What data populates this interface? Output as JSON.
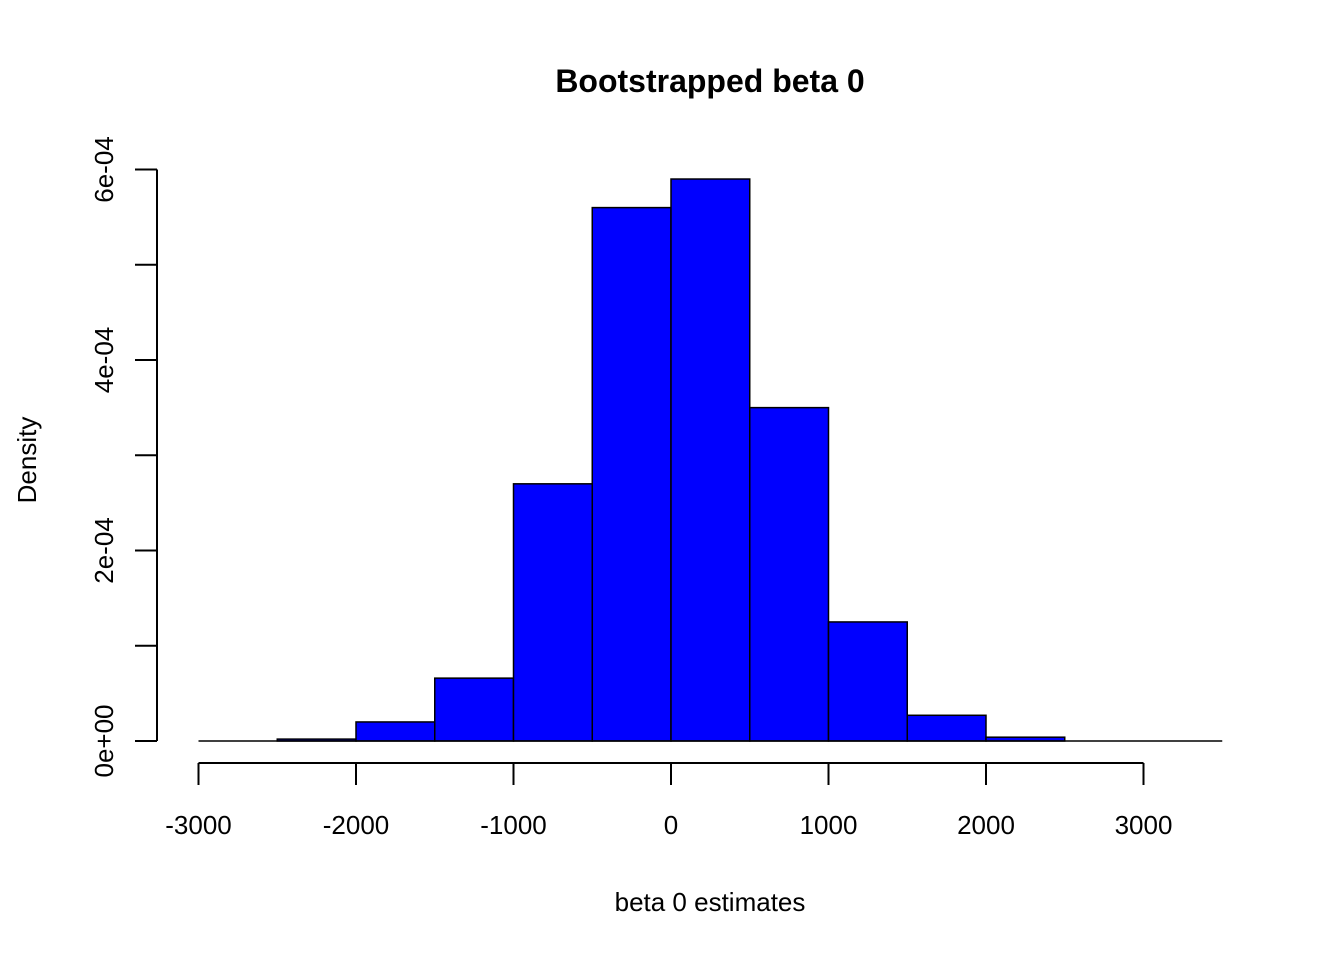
{
  "chart_data": {
    "type": "bar",
    "title": "Bootstrapped beta 0",
    "xlabel": "beta 0  estimates",
    "ylabel": "Density",
    "bar_color": "#0000ff",
    "bins": [
      {
        "x0": -3000,
        "x1": -2500,
        "density": 0.0
      },
      {
        "x0": -2500,
        "x1": -2000,
        "density": 2e-06
      },
      {
        "x0": -2000,
        "x1": -1500,
        "density": 2e-05
      },
      {
        "x0": -1500,
        "x1": -1000,
        "density": 6.6e-05
      },
      {
        "x0": -1000,
        "x1": -500,
        "density": 0.00027
      },
      {
        "x0": -500,
        "x1": 0,
        "density": 0.00056
      },
      {
        "x0": 0,
        "x1": 500,
        "density": 0.00059
      },
      {
        "x0": 500,
        "x1": 1000,
        "density": 0.00035
      },
      {
        "x0": 1000,
        "x1": 1500,
        "density": 0.000125
      },
      {
        "x0": 1500,
        "x1": 2000,
        "density": 2.7e-05
      },
      {
        "x0": 2000,
        "x1": 2500,
        "density": 4e-06
      },
      {
        "x0": 2500,
        "x1": 3000,
        "density": 0.0
      },
      {
        "x0": 3000,
        "x1": 3500,
        "density": 0.0
      }
    ],
    "xlim": [
      -3000,
      3500
    ],
    "ylim": [
      0,
      0.0006
    ],
    "x_ticks": [
      -3000,
      -2000,
      -1000,
      0,
      1000,
      2000,
      3000
    ],
    "x_tick_labels": [
      "-3000",
      "-2000",
      "-1000",
      "0",
      "1000",
      "2000",
      "3000"
    ],
    "y_ticks": [
      0,
      0.0001,
      0.0002,
      0.0003,
      0.0004,
      0.0005,
      0.0006
    ],
    "y_tick_labels": [
      "0e+00",
      "",
      "2e-04",
      "",
      "4e-04",
      "",
      "6e-04"
    ],
    "grid": false,
    "legend": "none"
  }
}
